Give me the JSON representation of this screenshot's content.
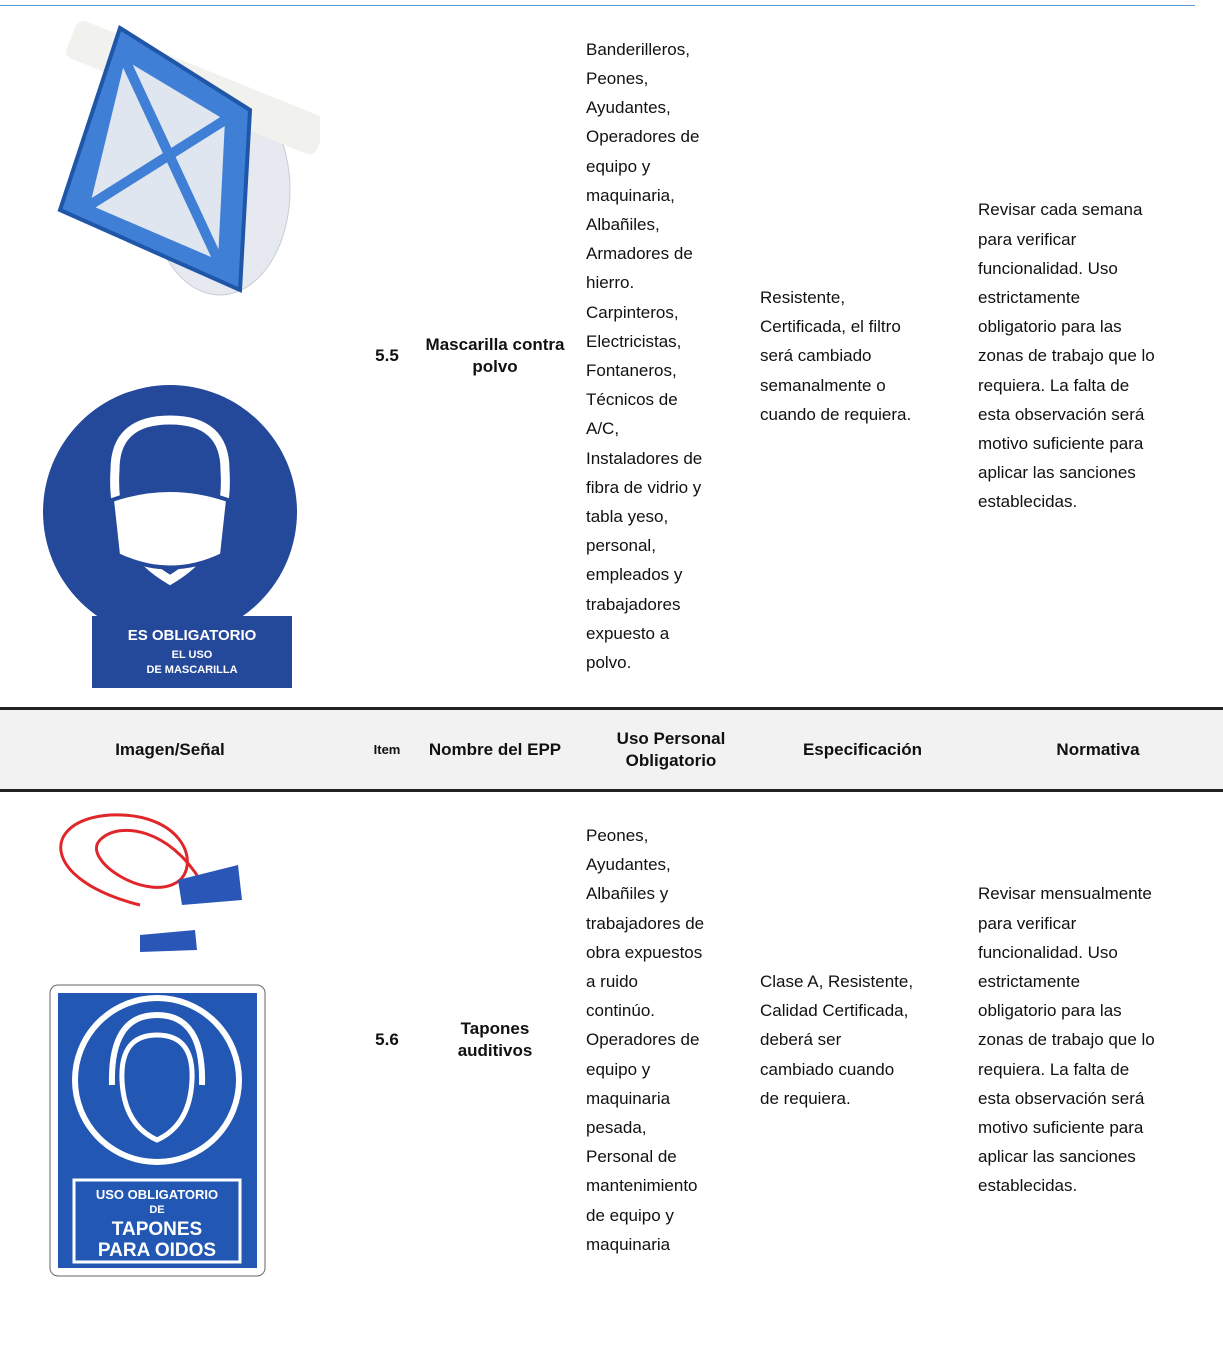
{
  "table": {
    "rows": [
      {
        "sign_lines": [
          "ES OBLIGATORIO",
          "EL USO",
          "DE MASCARILLA"
        ],
        "item": "5.5",
        "name": "Mascarilla contra polvo",
        "uso": [
          "Banderilleros,",
          "Peones,",
          "Ayudantes,",
          "Operadores de",
          "equipo y",
          "maquinaria,",
          "Albañiles,",
          "Armadores de",
          "hierro.",
          "Carpinteros,",
          "Electricistas,",
          "Fontaneros,",
          "Técnicos de",
          "A/C,",
          "Instaladores de",
          "fibra de vidrio y",
          "tabla yeso,",
          "personal,",
          "empleados y",
          "trabajadores",
          "expuesto a",
          "polvo."
        ],
        "especificacion": [
          "Resistente,",
          "Certificada, el filtro",
          "será cambiado",
          "semanalmente o",
          "cuando de requiera."
        ],
        "normativa": [
          "Revisar cada semana",
          "para verificar",
          "funcionalidad. Uso",
          "estrictamente",
          "obligatorio para las",
          "zonas de trabajo que lo",
          "requiera. La falta de",
          "esta observación será",
          "motivo suficiente para",
          "aplicar las sanciones",
          "establecidas."
        ]
      },
      {
        "sign_lines": [
          "USO OBLIGATORIO",
          "DE",
          "TAPONES",
          "PARA OIDOS"
        ],
        "item": "5.6",
        "name": "Tapones auditivos",
        "uso": [
          "Peones,",
          "Ayudantes,",
          "Albañiles y",
          "trabajadores de",
          "obra expuestos",
          "a ruido",
          "continúo.",
          "Operadores de",
          "equipo y",
          "maquinaria",
          "pesada,",
          "Personal de",
          "mantenimiento",
          "de equipo y",
          "maquinaria"
        ],
        "especificacion": [
          "Clase A, Resistente,",
          "Calidad Certificada,",
          "deberá ser",
          "cambiado cuando",
          "de requiera."
        ],
        "normativa": [
          "Revisar mensualmente",
          "para verificar",
          "funcionalidad. Uso",
          "estrictamente",
          "obligatorio para las",
          "zonas de trabajo que lo",
          "requiera. La falta de",
          "esta observación será",
          "motivo suficiente para",
          "aplicar las sanciones",
          "establecidas."
        ]
      }
    ],
    "header": {
      "imagen": "Imagen/Señal",
      "item": "Item",
      "name": "Nombre del EPP",
      "uso": "Uso Personal Obligatorio",
      "especificacion": "Especificación",
      "normativa": "Normativa"
    }
  }
}
